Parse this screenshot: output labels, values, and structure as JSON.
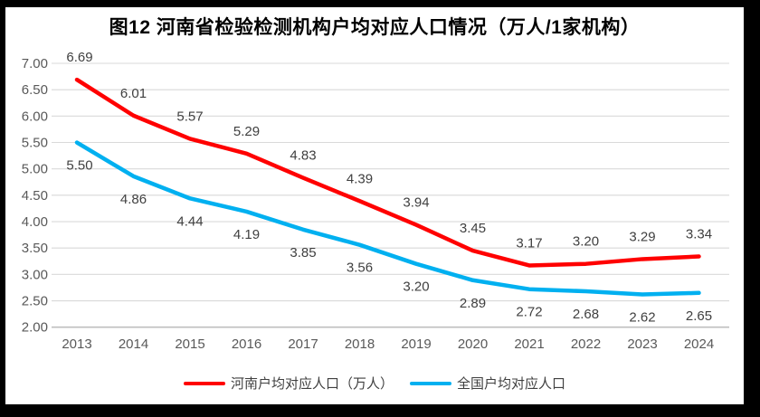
{
  "title": "图12  河南省检验检测机构户均对应人口情况（万人/1家机构）",
  "chart_data": {
    "type": "line",
    "categories": [
      "2013",
      "2014",
      "2015",
      "2016",
      "2017",
      "2018",
      "2019",
      "2020",
      "2021",
      "2022",
      "2023",
      "2024"
    ],
    "series": [
      {
        "name": "河南户均对应人口（万人）",
        "color": "#ff0000",
        "label_position": "above",
        "values": [
          6.69,
          6.01,
          5.57,
          5.29,
          4.83,
          4.39,
          3.94,
          3.45,
          3.17,
          3.2,
          3.29,
          3.34
        ]
      },
      {
        "name": "全国户均对应人口",
        "color": "#00b0f0",
        "label_position": "below",
        "values": [
          5.5,
          4.86,
          4.44,
          4.19,
          3.85,
          3.56,
          3.2,
          2.89,
          2.72,
          2.68,
          2.62,
          2.65
        ]
      }
    ],
    "ylim": [
      2.0,
      7.0
    ],
    "ytick_step": 0.5,
    "grid": true,
    "legend_position": "bottom",
    "colors": {
      "gridline": "#d9d9d9",
      "axis_line": "#bfbfbf",
      "tick_text": "#595959",
      "data_label_text": "#404040",
      "frame_border": "#000000",
      "background": "#ffffff"
    }
  }
}
